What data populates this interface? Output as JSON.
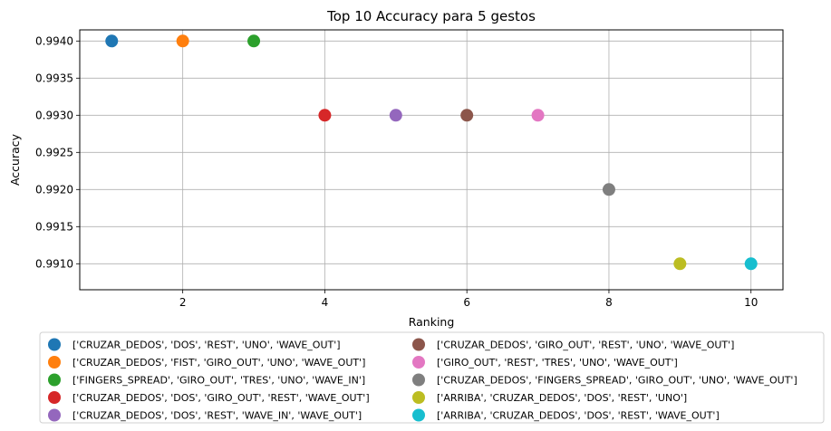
{
  "chart_data": {
    "type": "scatter",
    "title": "Top 10 Accuracy para 5 gestos",
    "xlabel": "Ranking",
    "ylabel": "Accuracy",
    "xlim": [
      0.55,
      10.45
    ],
    "ylim": [
      0.99065,
      0.99415
    ],
    "xticks": [
      2,
      4,
      6,
      8,
      10
    ],
    "xtick_labels": [
      "2",
      "4",
      "6",
      "8",
      "10"
    ],
    "yticks": [
      0.991,
      0.9915,
      0.992,
      0.9925,
      0.993,
      0.9935,
      0.994
    ],
    "ytick_labels": [
      "0.9910",
      "0.9915",
      "0.9920",
      "0.9925",
      "0.9930",
      "0.9935",
      "0.9940"
    ],
    "grid": true,
    "legend_position": "below",
    "legend_columns": 2,
    "series": [
      {
        "name": "['CRUZAR_DEDOS', 'DOS', 'REST', 'UNO', 'WAVE_OUT']",
        "x": 1,
        "y": 0.994,
        "color": "#1f77b4"
      },
      {
        "name": "['CRUZAR_DEDOS', 'FIST', 'GIRO_OUT', 'UNO', 'WAVE_OUT']",
        "x": 2,
        "y": 0.994,
        "color": "#ff7f0e"
      },
      {
        "name": "['FINGERS_SPREAD', 'GIRO_OUT', 'TRES', 'UNO', 'WAVE_IN']",
        "x": 3,
        "y": 0.994,
        "color": "#2ca02c"
      },
      {
        "name": "['CRUZAR_DEDOS', 'DOS', 'GIRO_OUT', 'REST', 'WAVE_OUT']",
        "x": 4,
        "y": 0.993,
        "color": "#d62728"
      },
      {
        "name": "['CRUZAR_DEDOS', 'DOS', 'REST', 'WAVE_IN', 'WAVE_OUT']",
        "x": 5,
        "y": 0.993,
        "color": "#9467bd"
      },
      {
        "name": "['CRUZAR_DEDOS', 'GIRO_OUT', 'REST', 'UNO', 'WAVE_OUT']",
        "x": 6,
        "y": 0.993,
        "color": "#8c564b"
      },
      {
        "name": "['GIRO_OUT', 'REST', 'TRES', 'UNO', 'WAVE_OUT']",
        "x": 7,
        "y": 0.993,
        "color": "#e377c2"
      },
      {
        "name": "['CRUZAR_DEDOS', 'FINGERS_SPREAD', 'GIRO_OUT', 'UNO', 'WAVE_OUT']",
        "x": 8,
        "y": 0.992,
        "color": "#7f7f7f"
      },
      {
        "name": "['ARRIBA', 'CRUZAR_DEDOS', 'DOS', 'REST', 'UNO']",
        "x": 9,
        "y": 0.991,
        "color": "#bcbd22"
      },
      {
        "name": "['ARRIBA', 'CRUZAR_DEDOS', 'DOS', 'REST', 'WAVE_OUT']",
        "x": 10,
        "y": 0.991,
        "color": "#17becf"
      }
    ]
  }
}
